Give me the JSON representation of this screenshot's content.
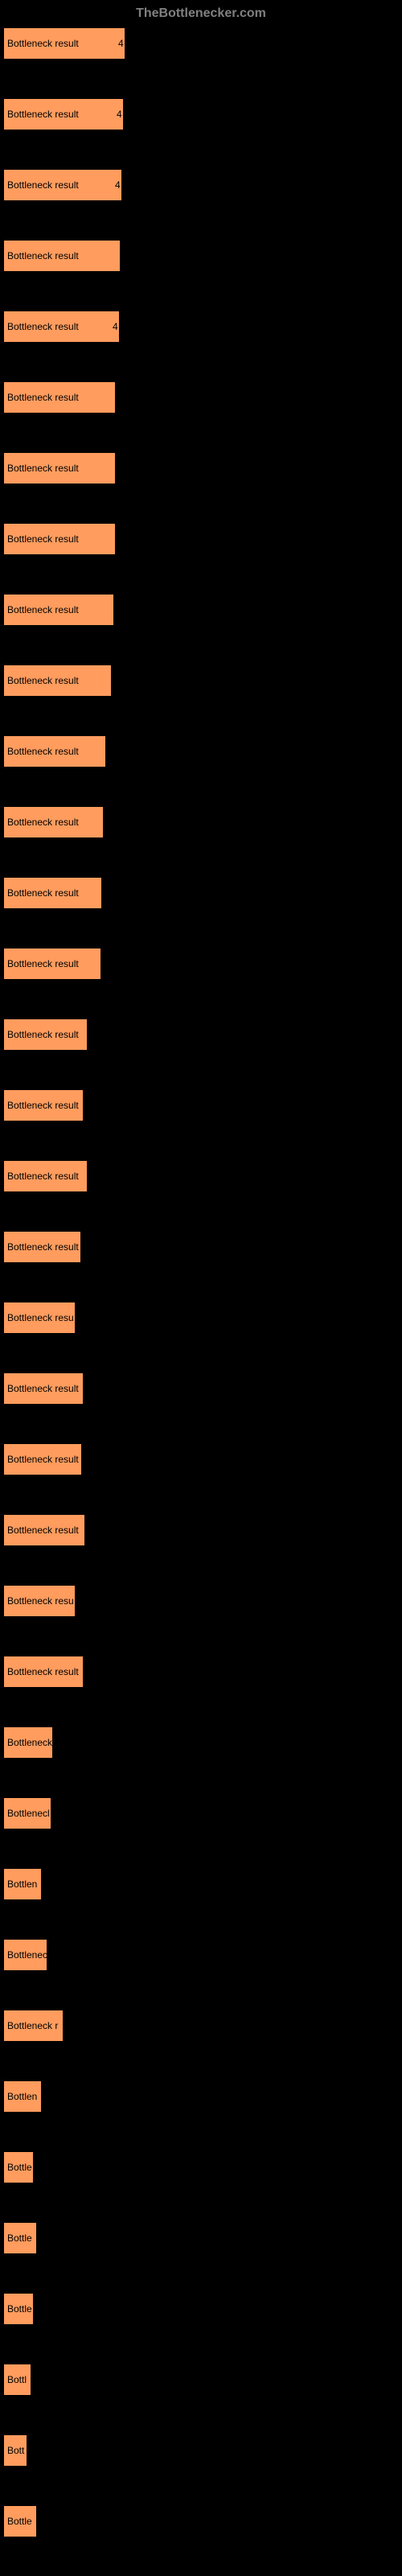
{
  "header": "TheBottlenecker.com",
  "chart": {
    "type": "bar",
    "bar_color": "#ff9c5e",
    "background_color": "#000000",
    "text_color": "#000000",
    "header_color": "#808080",
    "label_fontsize": 12,
    "max_value": 500,
    "bars": [
      {
        "label": "Bottleneck result",
        "value": 152,
        "value_label": "4"
      },
      {
        "label": "Bottleneck result",
        "value": 150,
        "value_label": "4"
      },
      {
        "label": "Bottleneck result",
        "value": 148,
        "value_label": "4"
      },
      {
        "label": "Bottleneck result",
        "value": 146,
        "value_label": ""
      },
      {
        "label": "Bottleneck result",
        "value": 145,
        "value_label": "4"
      },
      {
        "label": "Bottleneck result",
        "value": 140,
        "value_label": ""
      },
      {
        "label": "Bottleneck result",
        "value": 140,
        "value_label": ""
      },
      {
        "label": "Bottleneck result",
        "value": 140,
        "value_label": ""
      },
      {
        "label": "Bottleneck result",
        "value": 138,
        "value_label": ""
      },
      {
        "label": "Bottleneck result",
        "value": 135,
        "value_label": ""
      },
      {
        "label": "Bottleneck result",
        "value": 128,
        "value_label": ""
      },
      {
        "label": "Bottleneck result",
        "value": 125,
        "value_label": ""
      },
      {
        "label": "Bottleneck result",
        "value": 123,
        "value_label": ""
      },
      {
        "label": "Bottleneck result",
        "value": 122,
        "value_label": ""
      },
      {
        "label": "Bottleneck result",
        "value": 105,
        "value_label": ""
      },
      {
        "label": "Bottleneck result",
        "value": 100,
        "value_label": ""
      },
      {
        "label": "Bottleneck result",
        "value": 105,
        "value_label": ""
      },
      {
        "label": "Bottleneck result",
        "value": 97,
        "value_label": ""
      },
      {
        "label": "Bottleneck resu",
        "value": 90,
        "value_label": ""
      },
      {
        "label": "Bottleneck result",
        "value": 100,
        "value_label": ""
      },
      {
        "label": "Bottleneck result",
        "value": 98,
        "value_label": ""
      },
      {
        "label": "Bottleneck result",
        "value": 102,
        "value_label": ""
      },
      {
        "label": "Bottleneck resu",
        "value": 90,
        "value_label": ""
      },
      {
        "label": "Bottleneck result",
        "value": 100,
        "value_label": ""
      },
      {
        "label": "Bottleneck",
        "value": 62,
        "value_label": ""
      },
      {
        "label": "Bottlenecl",
        "value": 60,
        "value_label": ""
      },
      {
        "label": "Bottlen",
        "value": 48,
        "value_label": ""
      },
      {
        "label": "Bottlenec",
        "value": 55,
        "value_label": ""
      },
      {
        "label": "Bottleneck r",
        "value": 75,
        "value_label": ""
      },
      {
        "label": "Bottlen",
        "value": 48,
        "value_label": ""
      },
      {
        "label": "Bottle",
        "value": 38,
        "value_label": ""
      },
      {
        "label": "Bottle",
        "value": 42,
        "value_label": ""
      },
      {
        "label": "Bottle",
        "value": 38,
        "value_label": ""
      },
      {
        "label": "Bottl",
        "value": 35,
        "value_label": ""
      },
      {
        "label": "Bott",
        "value": 30,
        "value_label": ""
      },
      {
        "label": "Bottle",
        "value": 42,
        "value_label": ""
      }
    ]
  }
}
